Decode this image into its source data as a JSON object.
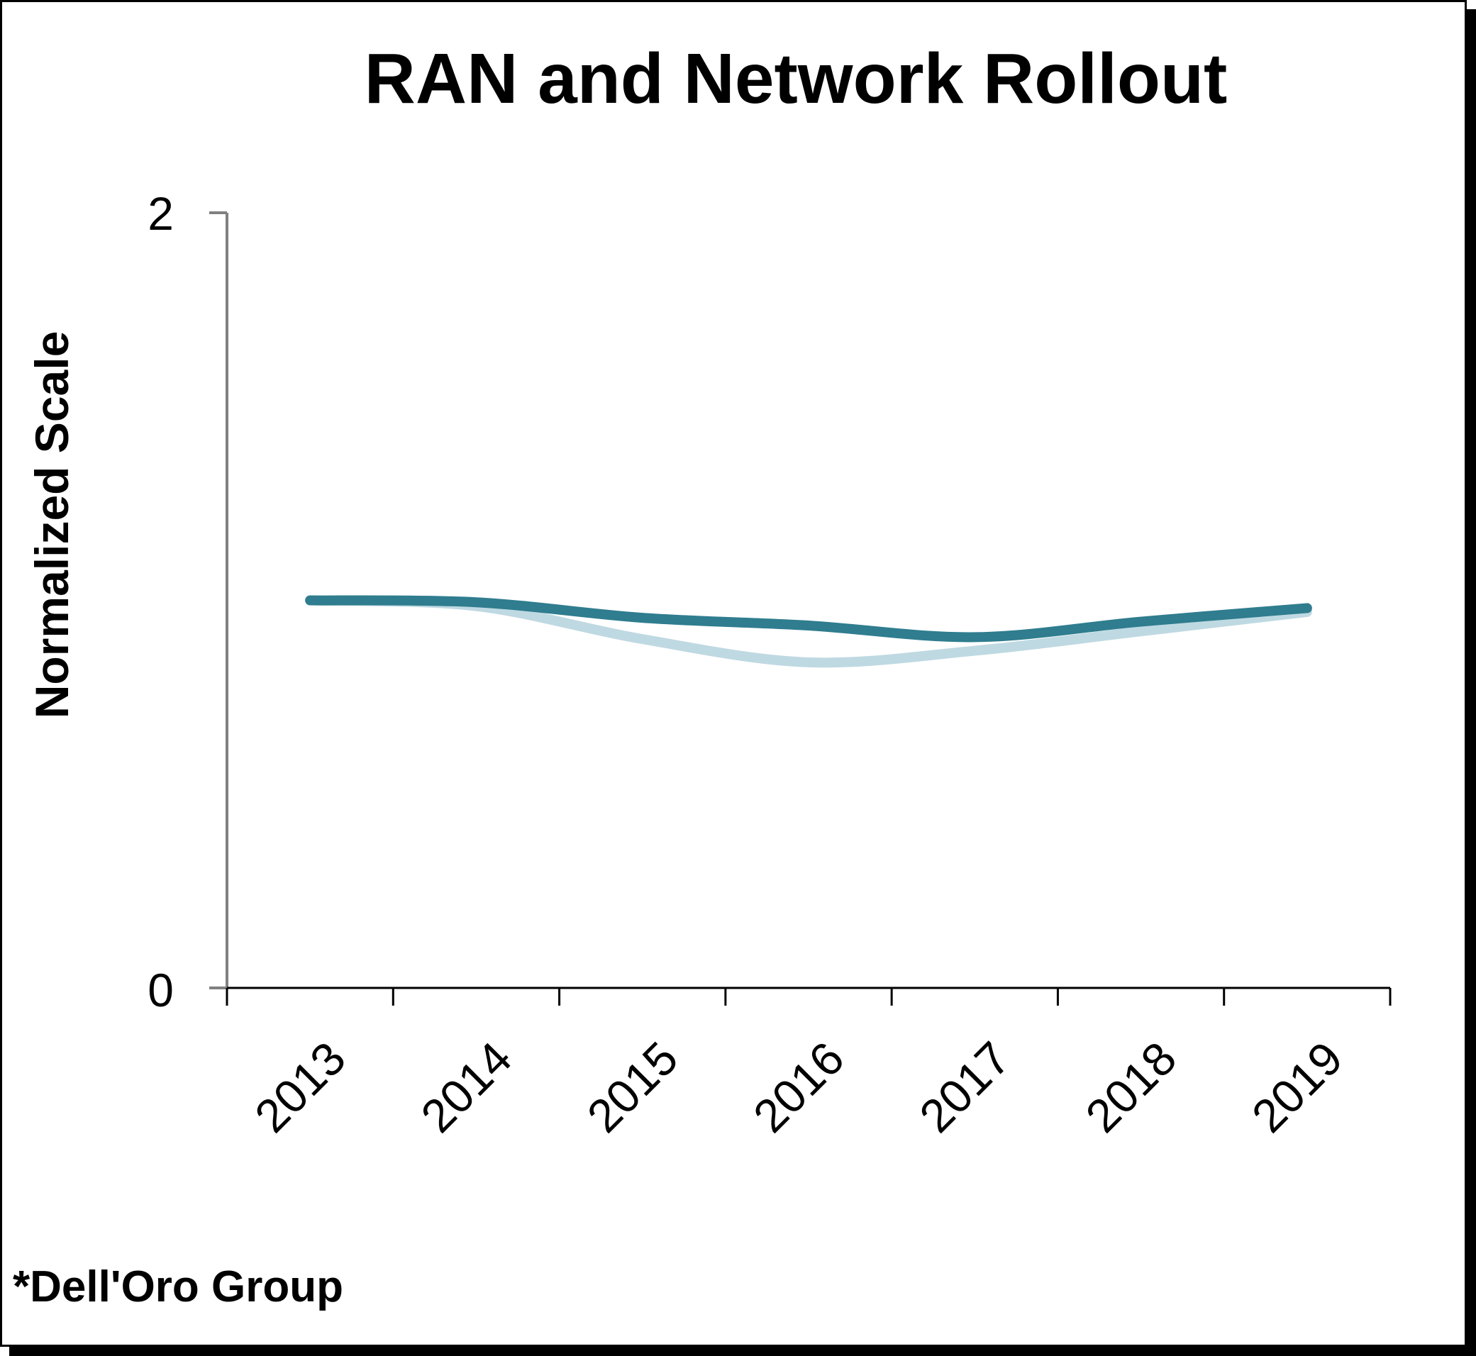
{
  "chart_data": {
    "type": "line",
    "title": "RAN and Network Rollout",
    "ylabel": "Normalized Scale",
    "xlabel": "",
    "categories": [
      "2013",
      "2014",
      "2015",
      "2016",
      "2017",
      "2018",
      "2019"
    ],
    "yticks": [
      "0",
      "2"
    ],
    "ylim": [
      0,
      2
    ],
    "grid": false,
    "series": [
      {
        "color": "#2f7d8f",
        "values": [
          1.0,
          0.995,
          0.955,
          0.935,
          0.905,
          0.945,
          0.98
        ]
      },
      {
        "color": "#bfd9e2",
        "values": [
          1.0,
          0.985,
          0.9,
          0.84,
          0.87,
          0.92,
          0.97
        ]
      }
    ],
    "source": "*Dell'Oro Group"
  }
}
